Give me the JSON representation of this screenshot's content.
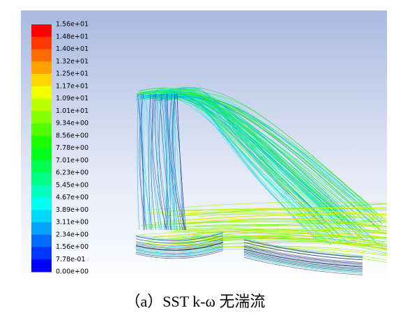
{
  "colorbar": {
    "labels": [
      "1.56e+01",
      "1.48e+01",
      "1.40e+01",
      "1.32e+01",
      "1.25e+01",
      "1.17e+01",
      "1.09e+01",
      "1.01e+01",
      "9.34e+00",
      "8.56e+00",
      "7.78e+00",
      "7.01e+00",
      "6.23e+00",
      "5.45e+00",
      "4.67e+00",
      "3.89e+00",
      "3.11e+00",
      "2.34e+00",
      "1.56e+00",
      "7.78e-01",
      "0.00e+00"
    ]
  },
  "caption": "（a）SST k-ω 无湍流"
}
